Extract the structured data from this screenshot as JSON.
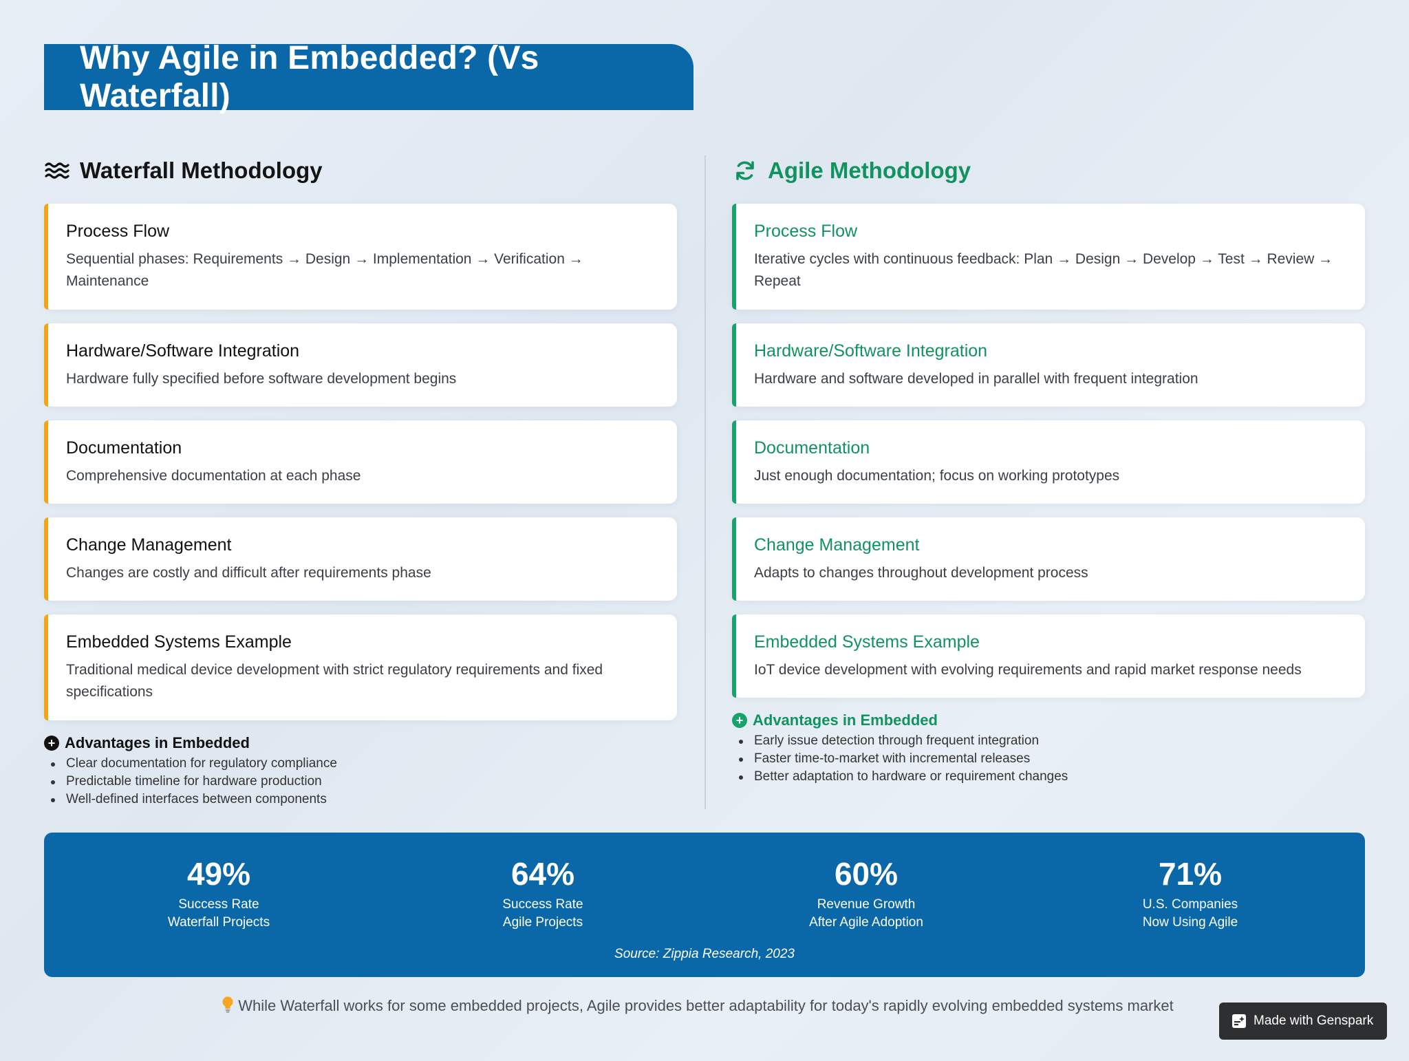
{
  "title": "Why Agile in Embedded? (Vs Waterfall)",
  "waterfall": {
    "heading": "Waterfall Methodology",
    "icon": "water-icon",
    "accent": "#f2a516",
    "cards": [
      {
        "title": "Process Flow",
        "text": "Sequential phases: Requirements → Design → Implementation → Verification → Maintenance"
      },
      {
        "title": "Hardware/Software Integration",
        "text": "Hardware fully specified before software development begins"
      },
      {
        "title": "Documentation",
        "text": "Comprehensive documentation at each phase"
      },
      {
        "title": "Change Management",
        "text": "Changes are costly and difficult after requirements phase"
      },
      {
        "title": "Embedded Systems Example",
        "text": "Traditional medical device development with strict regulatory requirements and fixed specifications"
      }
    ],
    "advantages": {
      "heading": "Advantages in Embedded",
      "items": [
        "Clear documentation for regulatory compliance",
        "Predictable timeline for hardware production",
        "Well-defined interfaces between components"
      ]
    }
  },
  "agile": {
    "heading": "Agile Methodology",
    "icon": "sync-icon",
    "accent": "#18a36b",
    "cards": [
      {
        "title": "Process Flow",
        "text": "Iterative cycles with continuous feedback: Plan → Design → Develop → Test → Review → Repeat"
      },
      {
        "title": "Hardware/Software Integration",
        "text": "Hardware and software developed in parallel with frequent integration"
      },
      {
        "title": "Documentation",
        "text": "Just enough documentation; focus on working prototypes"
      },
      {
        "title": "Change Management",
        "text": "Adapts to changes throughout development process"
      },
      {
        "title": "Embedded Systems Example",
        "text": "IoT device development with evolving requirements and rapid market response needs"
      }
    ],
    "advantages": {
      "heading": "Advantages in Embedded",
      "items": [
        "Early issue detection through frequent integration",
        "Faster time-to-market with incremental releases",
        "Better adaptation to hardware or requirement changes"
      ]
    }
  },
  "stats": {
    "items": [
      {
        "value": "49%",
        "line1": "Success Rate",
        "line2": "Waterfall Projects"
      },
      {
        "value": "64%",
        "line1": "Success Rate",
        "line2": "Agile Projects"
      },
      {
        "value": "60%",
        "line1": "Revenue Growth",
        "line2": "After Agile Adoption"
      },
      {
        "value": "71%",
        "line1": "U.S. Companies",
        "line2": "Now Using Agile"
      }
    ],
    "source": "Source: Zippia Research, 2023"
  },
  "footer_note": "While Waterfall works for some embedded projects, Agile provides better adaptability for today's rapidly evolving embedded systems market",
  "badge": "Made with Genspark",
  "colors": {
    "brand_blue": "#0a67a8",
    "waterfall_accent": "#f2a516",
    "agile_accent": "#18a36b"
  }
}
